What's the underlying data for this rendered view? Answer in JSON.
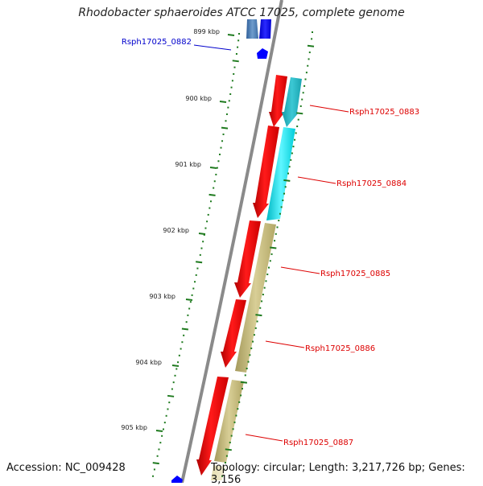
{
  "title": "Rhodobacter sphaeroides ATCC 17025, complete genome",
  "footer": {
    "accession": "Accession: NC_009428",
    "topology": "Topology: circular; Length: 3,217,726 bp; Genes: 3,156"
  },
  "colors": {
    "backbone": "#8a8a8a",
    "tick": "#1e7a1e",
    "gene_red": "#ff0000",
    "gene_blue": "#0000ff",
    "gene_cyan": "#00e5ee",
    "gene_khaki": "#c8bd7e",
    "label_red": "#dd0000",
    "label_blue": "#0000cc"
  },
  "ruler": [
    {
      "label": "899 kbp"
    },
    {
      "label": "900 kbp"
    },
    {
      "label": "901 kbp"
    },
    {
      "label": "902 kbp"
    },
    {
      "label": "903 kbp"
    },
    {
      "label": "904 kbp"
    },
    {
      "label": "905 kbp"
    }
  ],
  "genes": [
    {
      "label": "Rsph17025_0882",
      "color": "blue"
    },
    {
      "label": "Rsph17025_0883",
      "color": "red"
    },
    {
      "label": "Rsph17025_0884",
      "color": "red"
    },
    {
      "label": "Rsph17025_0885",
      "color": "red"
    },
    {
      "label": "Rsph17025_0886",
      "color": "red"
    },
    {
      "label": "Rsph17025_0887",
      "color": "red"
    }
  ]
}
